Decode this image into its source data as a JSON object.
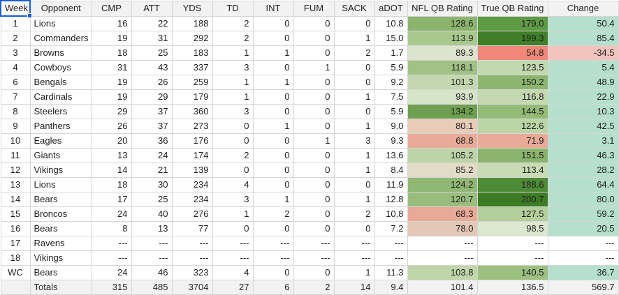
{
  "columns": [
    "Week",
    "Opponent",
    "CMP",
    "ATT",
    "YDS",
    "TD",
    "INT",
    "FUM",
    "SACK",
    "aDOT",
    "NFL QB Rating",
    "True QB Rating",
    "Change"
  ],
  "rows": [
    {
      "week": "1",
      "opponent": "Lions",
      "cmp": "16",
      "att": "22",
      "yds": "188",
      "td": "2",
      "int": "0",
      "fum": "0",
      "sack": "0",
      "adot": "10.8",
      "nfl": "128.6",
      "tqb": "179.0",
      "change": "50.4",
      "nfl_color": "#8db46e",
      "tqb_color": "#5f9a45",
      "change_color": "#b5e0cd"
    },
    {
      "week": "2",
      "opponent": "Commanders",
      "cmp": "19",
      "att": "31",
      "yds": "292",
      "td": "2",
      "int": "0",
      "fum": "0",
      "sack": "1",
      "adot": "15.0",
      "nfl": "113.9",
      "tqb": "199.3",
      "change": "85.4",
      "nfl_color": "#a9c88e",
      "tqb_color": "#3f7f28",
      "change_color": "#b5e0cd"
    },
    {
      "week": "3",
      "opponent": "Browns",
      "cmp": "18",
      "att": "25",
      "yds": "183",
      "td": "1",
      "int": "1",
      "fum": "0",
      "sack": "2",
      "adot": "1.7",
      "nfl": "89.3",
      "tqb": "54.8",
      "change": "-34.5",
      "nfl_color": "#dde3cc",
      "tqb_color": "#ef8878",
      "change_color": "#f3c4bd"
    },
    {
      "week": "4",
      "opponent": "Cowboys",
      "cmp": "31",
      "att": "43",
      "yds": "337",
      "td": "3",
      "int": "0",
      "fum": "1",
      "sack": "0",
      "adot": "5.9",
      "nfl": "118.1",
      "tqb": "123.5",
      "change": "5.4",
      "nfl_color": "#a0c284",
      "tqb_color": "#c2d8ae",
      "change_color": "#b5e0cd"
    },
    {
      "week": "6",
      "opponent": "Bengals",
      "cmp": "19",
      "att": "26",
      "yds": "259",
      "td": "1",
      "int": "1",
      "fum": "0",
      "sack": "0",
      "adot": "9.2",
      "nfl": "101.3",
      "tqb": "150.2",
      "change": "48.9",
      "nfl_color": "#c3d8b0",
      "tqb_color": "#8cb56f",
      "change_color": "#b5e0cd"
    },
    {
      "week": "7",
      "opponent": "Cardinals",
      "cmp": "19",
      "att": "29",
      "yds": "179",
      "td": "1",
      "int": "0",
      "fum": "0",
      "sack": "1",
      "adot": "7.5",
      "nfl": "93.9",
      "tqb": "116.8",
      "change": "22.9",
      "nfl_color": "#d7e4c8",
      "tqb_color": "#c4d9b0",
      "change_color": "#b5e0cd"
    },
    {
      "week": "8",
      "opponent": "Steelers",
      "cmp": "29",
      "att": "37",
      "yds": "360",
      "td": "3",
      "int": "0",
      "fum": "0",
      "sack": "0",
      "adot": "5.9",
      "nfl": "134.2",
      "tqb": "144.5",
      "change": "10.3",
      "nfl_color": "#6fa052",
      "tqb_color": "#95bb79",
      "change_color": "#b5e0cd"
    },
    {
      "week": "9",
      "opponent": "Panthers",
      "cmp": "26",
      "att": "37",
      "yds": "273",
      "td": "0",
      "int": "1",
      "fum": "0",
      "sack": "1",
      "adot": "9.0",
      "nfl": "80.1",
      "tqb": "122.6",
      "change": "42.5",
      "nfl_color": "#e8cbb8",
      "tqb_color": "#bcd5a6",
      "change_color": "#b5e0cd"
    },
    {
      "week": "10",
      "opponent": "Eagles",
      "cmp": "20",
      "att": "36",
      "yds": "176",
      "td": "0",
      "int": "0",
      "fum": "1",
      "sack": "3",
      "adot": "9.3",
      "nfl": "68.8",
      "tqb": "71.9",
      "change": "3.1",
      "nfl_color": "#e8ab98",
      "tqb_color": "#e9ab98",
      "change_color": "#b5e0cd"
    },
    {
      "week": "11",
      "opponent": "Giants",
      "cmp": "13",
      "att": "24",
      "yds": "174",
      "td": "2",
      "int": "0",
      "fum": "0",
      "sack": "1",
      "adot": "13.6",
      "nfl": "105.2",
      "tqb": "151.5",
      "change": "46.3",
      "nfl_color": "#bcd4a8",
      "tqb_color": "#8ab46d",
      "change_color": "#b5e0cd"
    },
    {
      "week": "12",
      "opponent": "Vikings",
      "cmp": "14",
      "att": "21",
      "yds": "139",
      "td": "0",
      "int": "0",
      "fum": "0",
      "sack": "1",
      "adot": "8.4",
      "nfl": "85.2",
      "tqb": "113.4",
      "change": "28.2",
      "nfl_color": "#e2dcc6",
      "tqb_color": "#c7dbb4",
      "change_color": "#b5e0cd"
    },
    {
      "week": "13",
      "opponent": "Lions",
      "cmp": "18",
      "att": "30",
      "yds": "234",
      "td": "4",
      "int": "0",
      "fum": "0",
      "sack": "0",
      "adot": "11.9",
      "nfl": "124.2",
      "tqb": "188.6",
      "change": "64.4",
      "nfl_color": "#91b774",
      "tqb_color": "#4e8b36",
      "change_color": "#b5e0cd"
    },
    {
      "week": "14",
      "opponent": "Bears",
      "cmp": "17",
      "att": "25",
      "yds": "234",
      "td": "3",
      "int": "1",
      "fum": "0",
      "sack": "1",
      "adot": "12.8",
      "nfl": "120.7",
      "tqb": "200.7",
      "change": "80.0",
      "nfl_color": "#99bd7c",
      "tqb_color": "#3c7c25",
      "change_color": "#b5e0cd"
    },
    {
      "week": "15",
      "opponent": "Broncos",
      "cmp": "24",
      "att": "40",
      "yds": "276",
      "td": "1",
      "int": "2",
      "fum": "0",
      "sack": "2",
      "adot": "10.8",
      "nfl": "68.3",
      "tqb": "127.5",
      "change": "59.2",
      "nfl_color": "#e8a996",
      "tqb_color": "#b3cf9c",
      "change_color": "#b5e0cd"
    },
    {
      "week": "16",
      "opponent": "Bears",
      "cmp": "8",
      "att": "13",
      "yds": "77",
      "td": "0",
      "int": "0",
      "fum": "0",
      "sack": "0",
      "adot": "7.2",
      "nfl": "78.0",
      "tqb": "98.5",
      "change": "20.5",
      "nfl_color": "#e4c7b6",
      "tqb_color": "#dde6cf",
      "change_color": "#b5e0cd"
    },
    {
      "week": "17",
      "opponent": "Ravens",
      "cmp": "---",
      "att": "---",
      "yds": "---",
      "td": "---",
      "int": "---",
      "fum": "---",
      "sack": "---",
      "adot": "---",
      "nfl": "---",
      "tqb": "---",
      "change": "---",
      "nfl_color": "#ffffff",
      "tqb_color": "#ffffff",
      "change_color": "#ffffff"
    },
    {
      "week": "18",
      "opponent": "Vikings",
      "cmp": "---",
      "att": "---",
      "yds": "---",
      "td": "---",
      "int": "---",
      "fum": "---",
      "sack": "---",
      "adot": "---",
      "nfl": "---",
      "tqb": "---",
      "change": "---",
      "nfl_color": "#ffffff",
      "tqb_color": "#ffffff",
      "change_color": "#ffffff"
    },
    {
      "week": "WC",
      "opponent": "Bears",
      "cmp": "24",
      "att": "46",
      "yds": "323",
      "td": "4",
      "int": "0",
      "fum": "0",
      "sack": "1",
      "adot": "11.3",
      "nfl": "103.8",
      "tqb": "140.5",
      "change": "36.7",
      "nfl_color": "#bed6aa",
      "tqb_color": "#9cc080",
      "change_color": "#b5e0cd"
    }
  ],
  "totals": {
    "label": "Totals",
    "cmp": "315",
    "att": "485",
    "yds": "3704",
    "td": "27",
    "int": "6",
    "fum": "2",
    "sack": "14",
    "adot": "9.4",
    "nfl": "101.4",
    "tqb": "136.5",
    "change": "569.7"
  }
}
